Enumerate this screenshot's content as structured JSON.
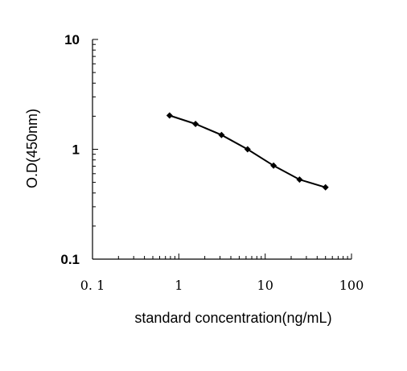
{
  "chart_data": {
    "type": "line",
    "xlabel": "standard concentration(ng/mL)",
    "ylabel": "O.D(450nm)",
    "x_scale": "log",
    "y_scale": "log",
    "xlim": [
      0.1,
      100
    ],
    "ylim": [
      0.1,
      10
    ],
    "x_tick_labels": [
      "0. 1",
      "1",
      "10",
      "100"
    ],
    "y_tick_labels": [
      "0.1",
      "1",
      "10"
    ],
    "grid": false,
    "legend": "none",
    "series": [
      {
        "x": [
          0.78,
          1.56,
          3.12,
          6.25,
          12.5,
          25,
          50
        ],
        "y": [
          2.03,
          1.7,
          1.35,
          1.0,
          0.71,
          0.53,
          0.45
        ],
        "color": "#000000",
        "marker": "diamond"
      }
    ]
  }
}
